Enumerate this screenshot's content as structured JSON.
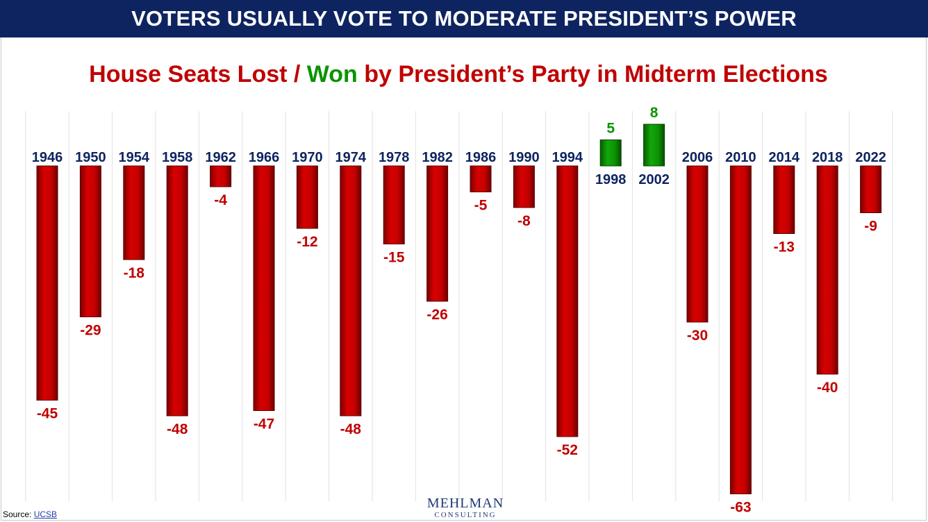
{
  "banner": {
    "title": "VOTERS USUALLY VOTE TO MODERATE PRESIDENT’S POWER"
  },
  "subtitle": {
    "part1": "House Seats Lost / ",
    "part2": "Won",
    "part3": " by President’s Party in Midterm Elections"
  },
  "footer": {
    "source_label": "Source: ",
    "source_link": "UCSB"
  },
  "logo": {
    "line1": "MEHLMAN",
    "line2": "CONSULTING"
  },
  "colors": {
    "loss": "#c00000",
    "win": "#0a9400",
    "year": "#0e2461",
    "banner": "#0e2461"
  },
  "chart_data": {
    "type": "bar",
    "title": "House Seats Lost / Won by President’s Party in Midterm Elections",
    "xlabel": "",
    "ylabel": "",
    "categories": [
      "1946",
      "1950",
      "1954",
      "1958",
      "1962",
      "1966",
      "1970",
      "1974",
      "1978",
      "1982",
      "1986",
      "1990",
      "1994",
      "1998",
      "2002",
      "2006",
      "2010",
      "2014",
      "2018",
      "2022"
    ],
    "values": [
      -45,
      -29,
      -18,
      -48,
      -4,
      -47,
      -12,
      -48,
      -15,
      -26,
      -5,
      -8,
      -52,
      5,
      8,
      -30,
      -63,
      -13,
      -40,
      -9
    ],
    "value_labels": [
      "-45",
      "-29",
      "-18",
      "-48",
      "-4",
      "-47",
      "-12",
      "-48",
      "-15",
      "-26",
      "-5",
      "-8",
      "-52",
      "5",
      "8",
      "-30",
      "-63",
      "-13",
      "-40",
      "-9"
    ],
    "ylim": [
      -63,
      8
    ],
    "grid": true
  }
}
